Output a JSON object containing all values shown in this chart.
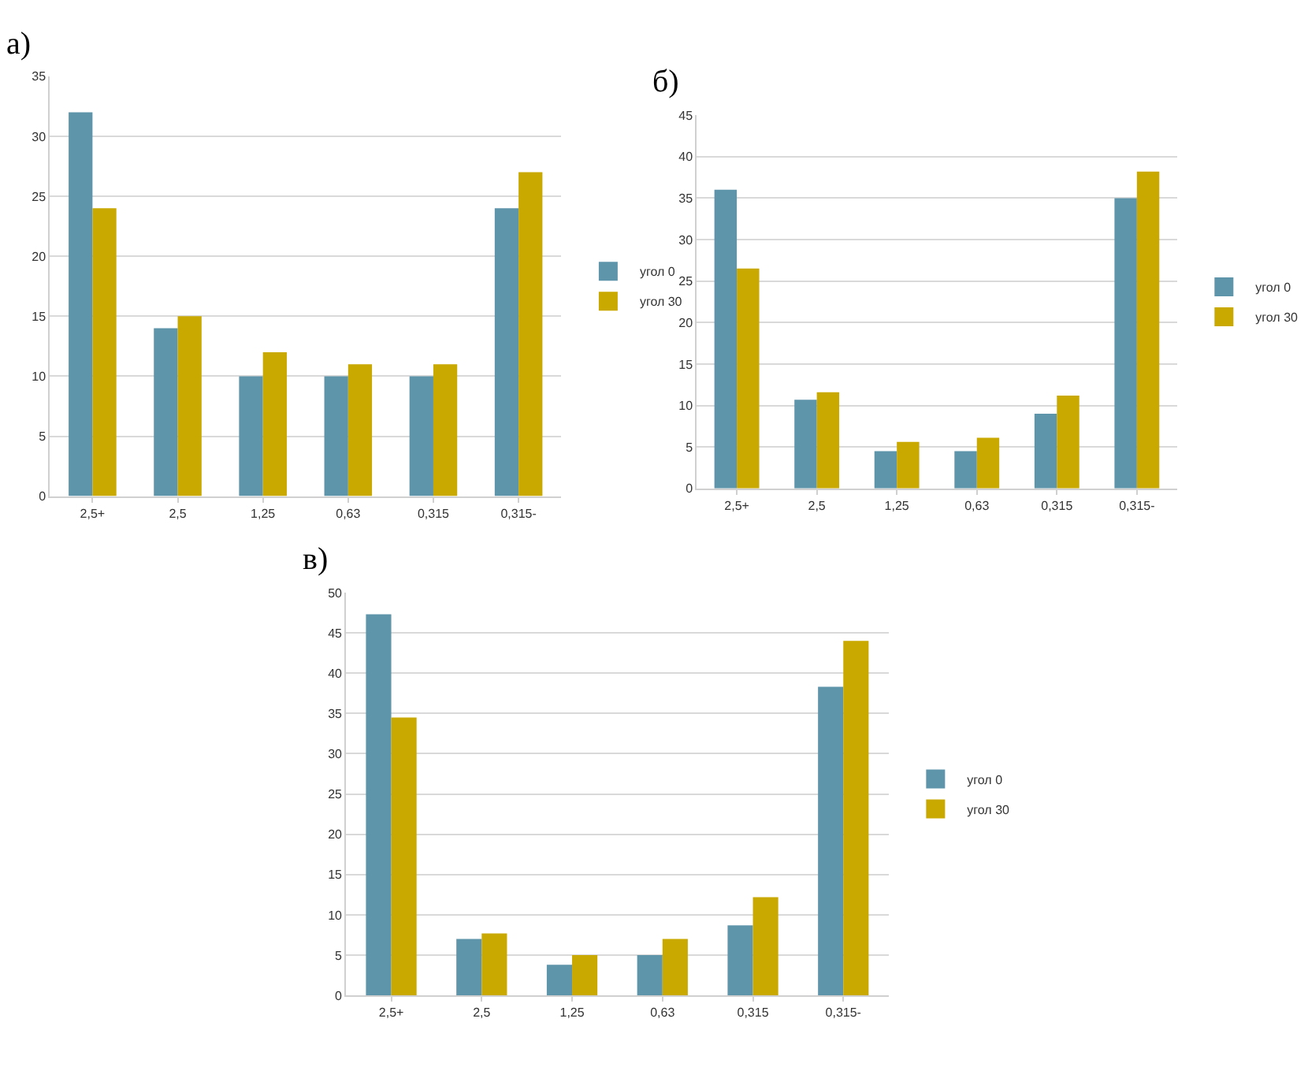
{
  "chart_data": [
    {
      "type": "bar",
      "title": "а)",
      "categories": [
        "2,5+",
        "2,5",
        "1,25",
        "0,63",
        "0,315",
        "0,315-"
      ],
      "series": [
        {
          "name": "угол 0",
          "color": "#5f95aa",
          "values": [
            32,
            14,
            10,
            10,
            10,
            24
          ]
        },
        {
          "name": "угол 30",
          "color": "#c9a800",
          "values": [
            24,
            15,
            12,
            11,
            11,
            27
          ]
        }
      ],
      "ylim": [
        0,
        35
      ],
      "yticks": [
        0,
        5,
        10,
        15,
        20,
        25,
        30,
        35
      ],
      "grid": "y",
      "legend": "right"
    },
    {
      "type": "bar",
      "title": "б)",
      "categories": [
        "2,5+",
        "2,5",
        "1,25",
        "0,63",
        "0,315",
        "0,315-"
      ],
      "series": [
        {
          "name": "угол 0",
          "color": "#5f95aa",
          "values": [
            36,
            10.7,
            4.5,
            4.5,
            9,
            35
          ]
        },
        {
          "name": "угол 30",
          "color": "#c9a800",
          "values": [
            26.5,
            11.6,
            5.6,
            6.1,
            11.2,
            38.2
          ]
        }
      ],
      "ylim": [
        0,
        45
      ],
      "yticks": [
        0,
        5,
        10,
        15,
        20,
        25,
        30,
        35,
        40,
        45
      ],
      "grid": "y",
      "legend": "right"
    },
    {
      "type": "bar",
      "title": "в)",
      "categories": [
        "2,5+",
        "2,5",
        "1,25",
        "0,63",
        "0,315",
        "0,315-"
      ],
      "series": [
        {
          "name": "угол 0",
          "color": "#5f95aa",
          "values": [
            47.3,
            7,
            3.8,
            5,
            8.7,
            38.3
          ]
        },
        {
          "name": "угол 30",
          "color": "#c9a800",
          "values": [
            34.5,
            7.7,
            5,
            7,
            12.2,
            44
          ]
        }
      ],
      "ylim": [
        0,
        50
      ],
      "yticks": [
        0,
        5,
        10,
        15,
        20,
        25,
        30,
        35,
        40,
        45,
        50
      ],
      "grid": "y",
      "legend": "right"
    }
  ]
}
